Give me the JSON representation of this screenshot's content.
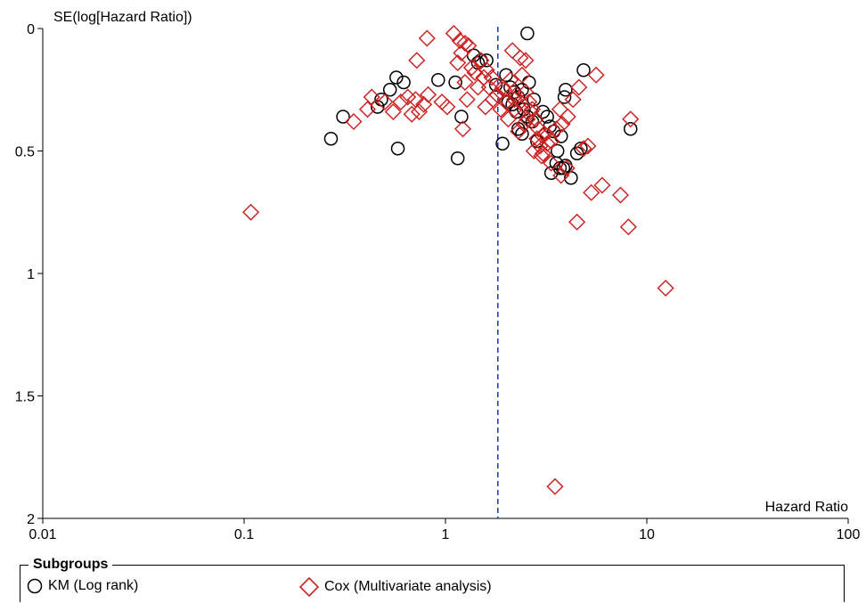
{
  "chart_data": {
    "type": "scatter",
    "title": "",
    "xlabel": "Hazard Ratio",
    "ylabel": "SE(log[Hazard Ratio])",
    "xscale": "log",
    "xlim": [
      0.01,
      100
    ],
    "ylim": [
      0,
      2
    ],
    "y_inverted": true,
    "x_ticks": [
      "0.01",
      "0.1",
      "1",
      "10",
      "100"
    ],
    "y_ticks": [
      "0",
      "0.5",
      "1",
      "1.5",
      "2"
    ],
    "reference_line": {
      "x": 1.82,
      "style": "dashed",
      "color": "#2233aa"
    },
    "grid": false,
    "legend": {
      "title": "Subgroups",
      "placement": "bottom"
    },
    "series": [
      {
        "name": "KM (Log rank)",
        "marker": "circle",
        "color": "#000000",
        "points": [
          [
            2.55,
            0.02
          ],
          [
            4.85,
            0.17
          ],
          [
            1.38,
            0.11
          ],
          [
            1.45,
            0.14
          ],
          [
            1.5,
            0.13
          ],
          [
            1.6,
            0.13
          ],
          [
            0.57,
            0.2
          ],
          [
            0.62,
            0.22
          ],
          [
            0.53,
            0.25
          ],
          [
            0.48,
            0.29
          ],
          [
            0.46,
            0.32
          ],
          [
            0.31,
            0.36
          ],
          [
            0.27,
            0.45
          ],
          [
            0.58,
            0.49
          ],
          [
            0.92,
            0.21
          ],
          [
            1.12,
            0.22
          ],
          [
            1.2,
            0.36
          ],
          [
            1.15,
            0.53
          ],
          [
            1.78,
            0.23
          ],
          [
            2.0,
            0.19
          ],
          [
            2.1,
            0.24
          ],
          [
            2.2,
            0.26
          ],
          [
            2.3,
            0.28
          ],
          [
            2.15,
            0.31
          ],
          [
            2.4,
            0.25
          ],
          [
            2.6,
            0.22
          ],
          [
            2.75,
            0.29
          ],
          [
            2.45,
            0.33
          ],
          [
            2.3,
            0.41
          ],
          [
            2.4,
            0.43
          ],
          [
            2.55,
            0.36
          ],
          [
            2.7,
            0.38
          ],
          [
            2.85,
            0.46
          ],
          [
            3.05,
            0.34
          ],
          [
            3.2,
            0.36
          ],
          [
            3.3,
            0.4
          ],
          [
            3.45,
            0.42
          ],
          [
            3.75,
            0.44
          ],
          [
            3.6,
            0.5
          ],
          [
            3.95,
            0.25
          ],
          [
            3.9,
            0.28
          ],
          [
            4.5,
            0.51
          ],
          [
            4.7,
            0.49
          ],
          [
            3.55,
            0.55
          ],
          [
            3.7,
            0.57
          ],
          [
            3.85,
            0.57
          ],
          [
            3.95,
            0.56
          ],
          [
            3.35,
            0.59
          ],
          [
            4.2,
            0.61
          ],
          [
            1.92,
            0.47
          ],
          [
            8.3,
            0.41
          ],
          [
            2.25,
            0.34
          ],
          [
            2.05,
            0.3
          ]
        ]
      },
      {
        "name": "Cox (Multivariate analysis)",
        "marker": "diamond",
        "color": "#cc2222",
        "points": [
          [
            0.81,
            0.04
          ],
          [
            1.1,
            0.02
          ],
          [
            1.18,
            0.05
          ],
          [
            1.25,
            0.06
          ],
          [
            1.3,
            0.07
          ],
          [
            1.2,
            0.1
          ],
          [
            1.5,
            0.13
          ],
          [
            1.15,
            0.14
          ],
          [
            0.72,
            0.13
          ],
          [
            1.35,
            0.16
          ],
          [
            1.4,
            0.18
          ],
          [
            1.6,
            0.17
          ],
          [
            1.7,
            0.2
          ],
          [
            1.55,
            0.2
          ],
          [
            1.25,
            0.22
          ],
          [
            1.45,
            0.24
          ],
          [
            1.65,
            0.24
          ],
          [
            1.8,
            0.27
          ],
          [
            1.95,
            0.25
          ],
          [
            2.1,
            0.21
          ],
          [
            2.15,
            0.09
          ],
          [
            2.35,
            0.12
          ],
          [
            2.5,
            0.13
          ],
          [
            2.4,
            0.19
          ],
          [
            2.25,
            0.27
          ],
          [
            2.5,
            0.26
          ],
          [
            2.6,
            0.3
          ],
          [
            2.7,
            0.33
          ],
          [
            2.55,
            0.37
          ],
          [
            2.45,
            0.39
          ],
          [
            2.8,
            0.37
          ],
          [
            2.9,
            0.41
          ],
          [
            3.05,
            0.44
          ],
          [
            3.2,
            0.47
          ],
          [
            3.1,
            0.43
          ],
          [
            2.95,
            0.48
          ],
          [
            2.75,
            0.5
          ],
          [
            3.35,
            0.46
          ],
          [
            3.55,
            0.41
          ],
          [
            3.7,
            0.33
          ],
          [
            3.8,
            0.39
          ],
          [
            4.05,
            0.36
          ],
          [
            4.3,
            0.29
          ],
          [
            4.6,
            0.24
          ],
          [
            5.6,
            0.19
          ],
          [
            5.1,
            0.48
          ],
          [
            4.85,
            0.49
          ],
          [
            3.75,
            0.6
          ],
          [
            4.0,
            0.57
          ],
          [
            3.35,
            0.55
          ],
          [
            5.3,
            0.67
          ],
          [
            6.0,
            0.64
          ],
          [
            7.4,
            0.68
          ],
          [
            8.1,
            0.81
          ],
          [
            4.5,
            0.79
          ],
          [
            8.3,
            0.37
          ],
          [
            12.4,
            1.06
          ],
          [
            3.5,
            1.87
          ],
          [
            0.108,
            0.75
          ],
          [
            0.35,
            0.38
          ],
          [
            0.41,
            0.33
          ],
          [
            0.43,
            0.28
          ],
          [
            0.5,
            0.3
          ],
          [
            0.55,
            0.34
          ],
          [
            0.6,
            0.3
          ],
          [
            0.65,
            0.28
          ],
          [
            0.68,
            0.35
          ],
          [
            0.71,
            0.29
          ],
          [
            0.74,
            0.34
          ],
          [
            0.78,
            0.31
          ],
          [
            0.82,
            0.27
          ],
          [
            0.96,
            0.3
          ],
          [
            1.02,
            0.32
          ],
          [
            1.22,
            0.41
          ],
          [
            1.28,
            0.29
          ],
          [
            1.58,
            0.32
          ],
          [
            1.72,
            0.29
          ],
          [
            1.88,
            0.33
          ],
          [
            2.05,
            0.37
          ],
          [
            2.2,
            0.33
          ],
          [
            2.3,
            0.42
          ],
          [
            3.05,
            0.51
          ],
          [
            2.0,
            0.3
          ],
          [
            1.93,
            0.24
          ],
          [
            2.2,
            0.29
          ],
          [
            2.35,
            0.3
          ],
          [
            2.65,
            0.34
          ],
          [
            2.85,
            0.45
          ],
          [
            3.0,
            0.52
          ]
        ]
      }
    ]
  }
}
